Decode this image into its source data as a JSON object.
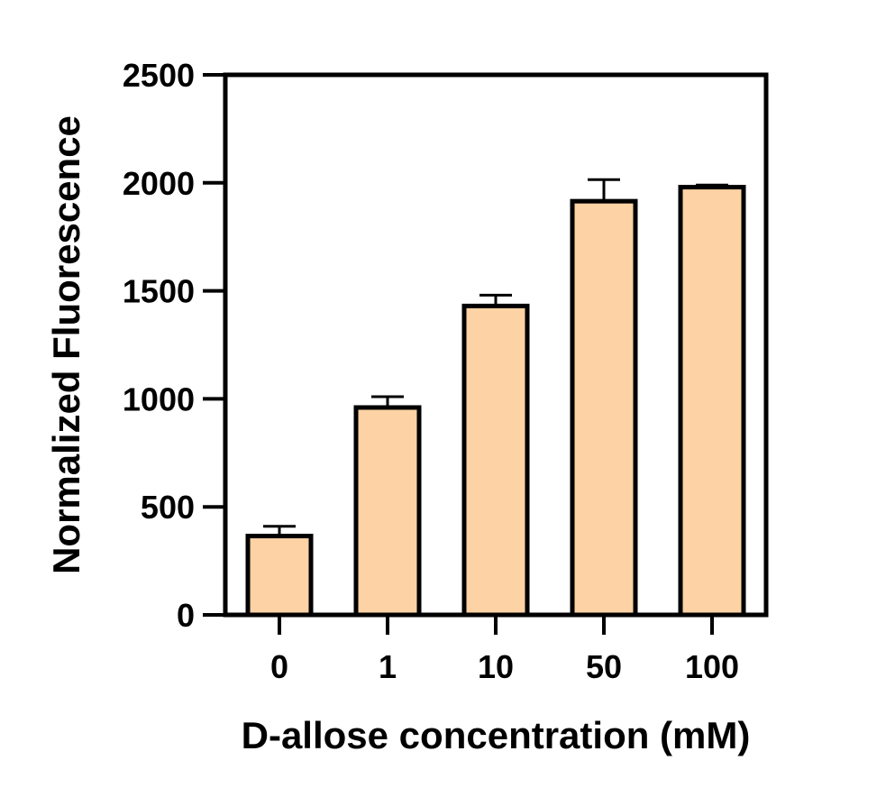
{
  "chart_data": {
    "type": "bar",
    "title": "",
    "xlabel": "D-allose concentration (mM)",
    "ylabel": "Normalized Fluorescence",
    "categories": [
      "0",
      "1",
      "10",
      "50",
      "100"
    ],
    "values": [
      365,
      960,
      1430,
      1915,
      1980
    ],
    "errors": [
      45,
      50,
      50,
      100,
      10
    ],
    "ylim": [
      0,
      2500
    ],
    "yticks": [
      0,
      500,
      1000,
      1500,
      2000,
      2500
    ],
    "ytick_labels": [
      "0",
      "500",
      "1000",
      "1500",
      "2000",
      "2500"
    ],
    "grid": false,
    "legend": "none",
    "bar_color": "#FDD2A4",
    "edge_color": "#000000"
  }
}
